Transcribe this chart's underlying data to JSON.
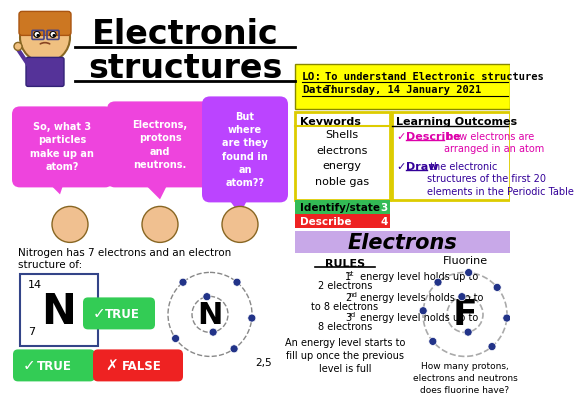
{
  "title_line1": "Electronic",
  "title_line2": "structures",
  "lo_label": "LO:",
  "lo_text": "To understand Electronic structures",
  "date_label": "Date:",
  "date_text": "Thursday, 14 January 2021",
  "keywords_title": "Keywords",
  "keywords_list": "Shells\nelectrons\nenergy\nnoble gas",
  "lo_outcomes_title": "Learning Outcomes",
  "outcome1_check": "✓",
  "outcome1_link": "Describe",
  "outcome1_rest": " how electrons are\narranged in an atom",
  "outcome2_check": "✓",
  "outcome2_link": "Draw",
  "outcome2_rest": " the electronic\nstructures of the first 20\nelements in the Periodic Table",
  "identify_label": "Identify/state",
  "identify_num": "3",
  "describe_label": "Describe",
  "describe_num": "4",
  "section_title": "Electrons",
  "rules_title": "RULES",
  "rule1": "1st energy level holds up to\n2 electrons",
  "rule2": "2nd energy levels holds up to\nto 8 electrons",
  "rule3": "3rd energy level holds up to\n8 electrons",
  "rule4": "An energy level starts to\nfill up once the previous\nlevel is full",
  "fluorine_label": "Fluorine",
  "fluorine_question": "How many protons,\nelectrons and neutrons\ndoes fluorine have?",
  "nitrogen_text1": "Nitrogen has 7 electrons and an electron",
  "nitrogen_text2": "structure of:",
  "bubble1": "So, what 3\nparticles\nmake up an\natom?",
  "bubble2": "Electrons,\nprotons\nand\nneutrons.",
  "bubble3": "But\nwhere\nare they\nfound in\nan\natom??",
  "bg_color": "#ffffff",
  "yellow_bg": "#ffff00",
  "purple_bg": "#c8a8e8",
  "green_row": "#33bb55",
  "red_row": "#ee2222",
  "bubble_pink": "#ee44dd",
  "bubble_purple": "#bb44ff",
  "true_green": "#33cc55",
  "false_red": "#ee2222",
  "atom_blue": "#223388",
  "pt_border": "#334488"
}
